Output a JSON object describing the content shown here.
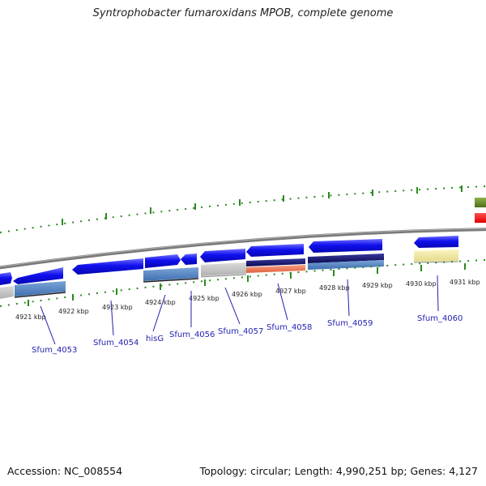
{
  "header": {
    "title": "Syntrophobacter fumaroxidans MPOB, complete genome"
  },
  "footer": {
    "accession": "Accession: NC_008554",
    "summary": "Topology: circular; Length: 4,990,251 bp; Genes: 4,127"
  },
  "scale_labels": [
    "4921 kbp",
    "4922 kbp",
    "4923 kbp",
    "4924 kbp",
    "4925 kbp",
    "4926 kbp",
    "4927 kbp",
    "4928 kbp",
    "4929 kbp",
    "4930 kbp",
    "4931 kbp"
  ],
  "gene_labels": [
    "Sfum_4053",
    "Sfum_4054",
    "hisG",
    "Sfum_4056",
    "Sfum_4057",
    "Sfum_4058",
    "Sfum_4059",
    "Sfum_4060"
  ],
  "colors": {
    "gene_arrow": "#0a0ae8",
    "backbone": "#8a8a8a",
    "tick": "#2a8a1e",
    "steelblue": "#4d7fbf",
    "gray_feature": "#c4c4c4",
    "navy_feature": "#151565",
    "salmon_feature": "#f07a5a",
    "khaki_feature": "#f1e79e",
    "olive_feature": "#6b8c2b",
    "red_feature": "#ff1010"
  }
}
